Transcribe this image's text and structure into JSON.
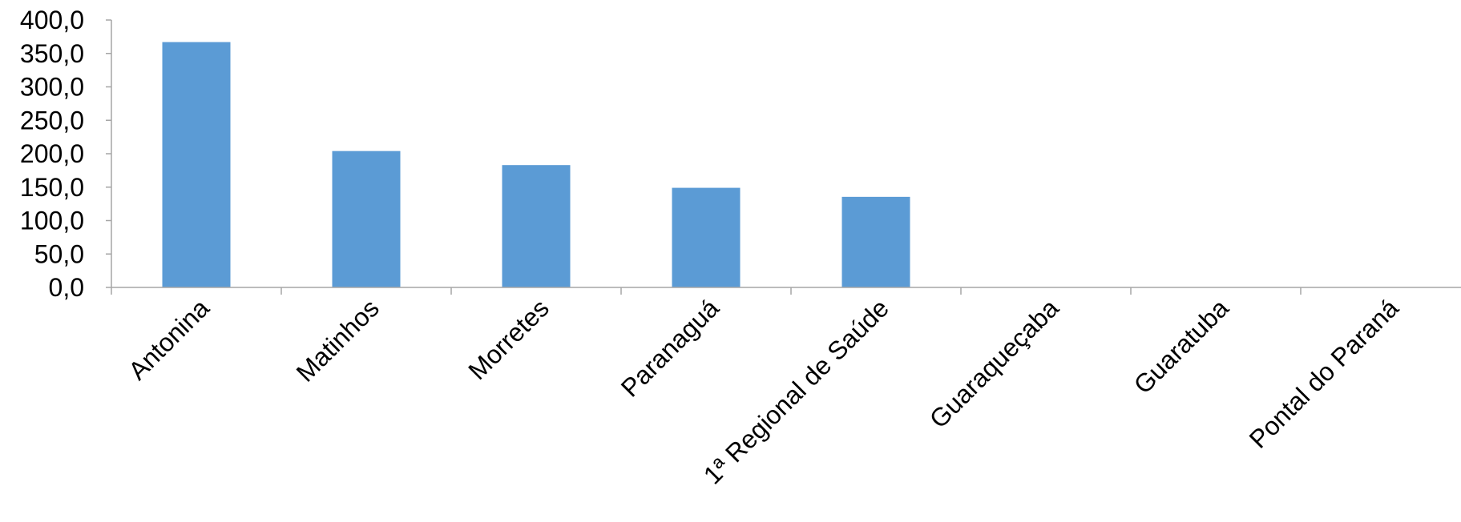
{
  "chart_data": {
    "type": "bar",
    "title": "",
    "xlabel": "",
    "ylabel": "",
    "categories": [
      "Antonina",
      "Matinhos",
      "Morretes",
      "Paranaguá",
      "1ª Regional de Saúde",
      "Guaraqueçaba",
      "Guaratuba",
      "Pontal do Paraná"
    ],
    "values": [
      367.0,
      204.0,
      183.0,
      149.0,
      135.5,
      0,
      0,
      0
    ],
    "ylim": [
      0,
      400
    ],
    "yticks": [
      "0,0",
      "50,0",
      "100,0",
      "150,0",
      "200,0",
      "250,0",
      "300,0",
      "350,0",
      "400,0"
    ],
    "grid": false,
    "legend": "none",
    "bar_color": "#5b9bd5",
    "axis_color": "#a6a6a6"
  }
}
